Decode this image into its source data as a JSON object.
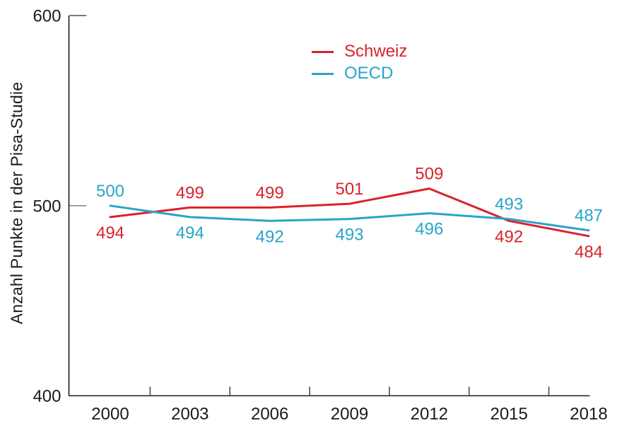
{
  "chart_data": {
    "type": "line",
    "title": "",
    "xlabel": "",
    "ylabel": "Anzahl Punkte in der Pisa-Studie",
    "categories": [
      "2000",
      "2003",
      "2006",
      "2009",
      "2012",
      "2015",
      "2018"
    ],
    "series": [
      {
        "name": "Schweiz",
        "color": "#d9232b",
        "values": [
          494,
          499,
          499,
          501,
          509,
          492,
          484
        ],
        "label_side": [
          "below",
          "above",
          "above",
          "above",
          "above",
          "below",
          "below"
        ]
      },
      {
        "name": "OECD",
        "color": "#29a4c9",
        "values": [
          500,
          494,
          492,
          493,
          496,
          493,
          487
        ],
        "label_side": [
          "above",
          "below",
          "below",
          "below",
          "below",
          "above",
          "above"
        ]
      }
    ],
    "ylim": [
      400,
      600
    ],
    "yticks": [
      600,
      500,
      400
    ],
    "grid": false,
    "data_labels": true,
    "legend_position": "top-center",
    "colors": {
      "axis": "#1a1a1a",
      "tick": "#4d4d4d",
      "mid_tick": "#808080",
      "text": "#1a1a1a"
    }
  }
}
